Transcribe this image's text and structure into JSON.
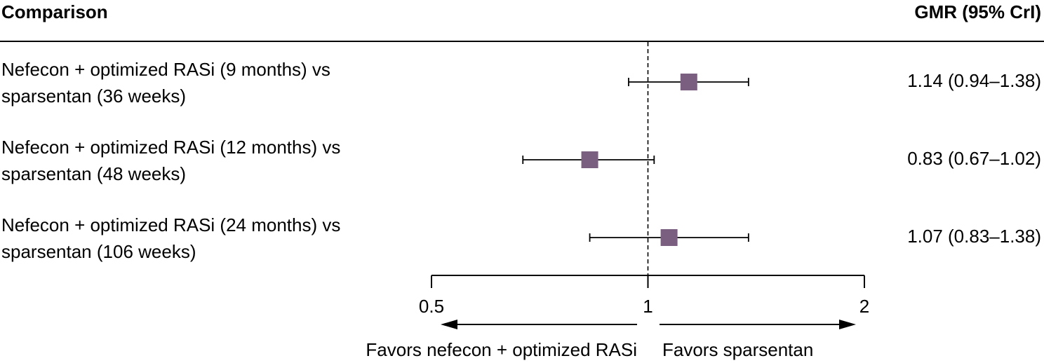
{
  "header": {
    "left": "Comparison",
    "right": "GMR (95% CrI)"
  },
  "rows": [
    {
      "label_line1": "Nefecon + optimized RASi (9 months) vs",
      "label_line2": "sparsentan (36 weeks)",
      "estimate_text": "1.14 (0.94–1.38)"
    },
    {
      "label_line1": "Nefecon + optimized RASi (12 months) vs",
      "label_line2": "sparsentan (48 weeks)",
      "estimate_text": "0.83 (0.67–1.02)"
    },
    {
      "label_line1": "Nefecon + optimized RASi (24 months) vs",
      "label_line2": "sparsentan (106 weeks)",
      "estimate_text": "1.07 (0.83–1.38)"
    }
  ],
  "chart_data": {
    "type": "forest",
    "x_scale": "log",
    "xlim": [
      0.5,
      2
    ],
    "reference_line": 1,
    "ticks": [
      {
        "value": 0.5,
        "label": "0.5"
      },
      {
        "value": 1,
        "label": "1"
      },
      {
        "value": 2,
        "label": "2"
      }
    ],
    "points": [
      {
        "estimate": 1.14,
        "lower": 0.94,
        "upper": 1.38
      },
      {
        "estimate": 0.83,
        "lower": 0.67,
        "upper": 1.02
      },
      {
        "estimate": 1.07,
        "lower": 0.83,
        "upper": 1.38
      }
    ],
    "marker_color": "#7a5f80",
    "favors_left": "Favors nefecon + optimized RASi",
    "favors_right": "Favors sparsentan"
  }
}
